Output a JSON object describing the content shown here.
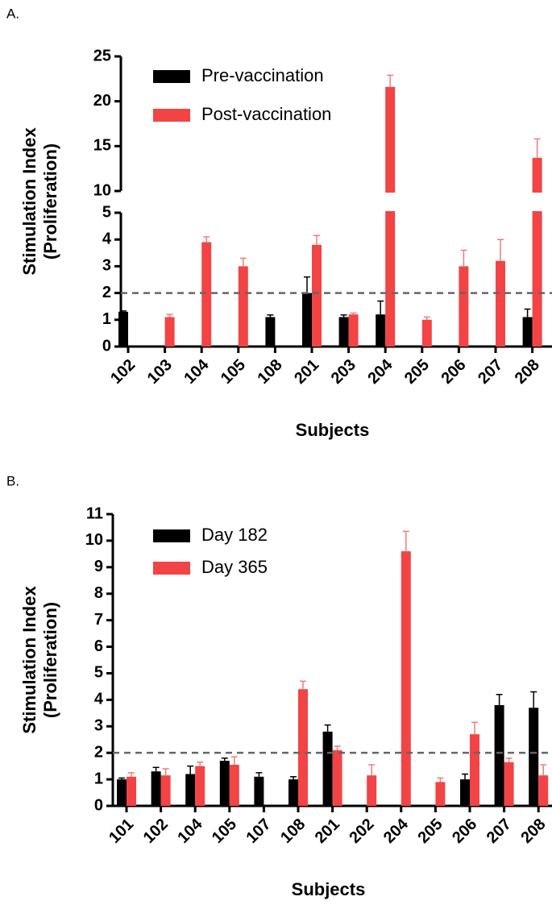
{
  "chart_data": [
    {
      "type": "bar",
      "panel_label": "A.",
      "xlabel": "Subjects",
      "ylabel_lines": [
        "Stimulation Index",
        "(Proliferation)"
      ],
      "categories": [
        "102",
        "103",
        "104",
        "105",
        "108",
        "201",
        "203",
        "204",
        "205",
        "206",
        "207",
        "208"
      ],
      "series": [
        {
          "name": "Pre-vaccination",
          "color": "#000000",
          "error_color": "#000000",
          "values": [
            1.3,
            null,
            null,
            null,
            1.1,
            2.0,
            1.1,
            1.2,
            null,
            null,
            null,
            1.1
          ],
          "errors": [
            0.03,
            null,
            null,
            null,
            0.08,
            0.6,
            0.08,
            0.5,
            null,
            null,
            null,
            0.3
          ]
        },
        {
          "name": "Post-vaccination",
          "color": "#f24445",
          "error_color": "#f47a7a",
          "values": [
            null,
            1.1,
            3.9,
            3.0,
            null,
            3.8,
            1.2,
            21.6,
            1.0,
            3.0,
            3.2,
            13.7
          ],
          "errors": [
            null,
            0.1,
            0.2,
            0.3,
            null,
            0.35,
            0.05,
            1.3,
            0.1,
            0.6,
            0.8,
            2.1
          ]
        }
      ],
      "y_segments": [
        {
          "ylim": [
            0,
            5
          ],
          "yticks": [
            0,
            1,
            2,
            3,
            4,
            5
          ]
        },
        {
          "ylim": [
            10,
            25
          ],
          "yticks": [
            10,
            15,
            20,
            25
          ]
        }
      ],
      "reference_line": 2
    },
    {
      "type": "bar",
      "panel_label": "B.",
      "xlabel": "Subjects",
      "ylabel_lines": [
        "Stimulation Index",
        "(Proliferation)"
      ],
      "categories": [
        "101",
        "102",
        "104",
        "105",
        "107",
        "108",
        "201",
        "202",
        "204",
        "205",
        "206",
        "207",
        "208"
      ],
      "series": [
        {
          "name": "Day 182",
          "color": "#000000",
          "error_color": "#000000",
          "values": [
            1.0,
            1.3,
            1.2,
            1.7,
            1.1,
            1.0,
            2.8,
            null,
            null,
            null,
            1.0,
            3.8,
            3.7
          ],
          "errors": [
            0.05,
            0.15,
            0.3,
            0.1,
            0.15,
            0.1,
            0.25,
            null,
            null,
            null,
            0.2,
            0.4,
            0.6
          ]
        },
        {
          "name": "Day 365",
          "color": "#f24445",
          "error_color": "#f47a7a",
          "values": [
            1.1,
            1.15,
            1.5,
            1.55,
            null,
            4.4,
            2.1,
            1.15,
            9.6,
            0.9,
            2.7,
            1.65,
            1.15
          ],
          "errors": [
            0.15,
            0.25,
            0.15,
            0.3,
            null,
            0.3,
            0.15,
            0.4,
            0.75,
            0.15,
            0.45,
            0.15,
            0.4
          ]
        }
      ],
      "y_segments": [
        {
          "ylim": [
            0,
            11
          ],
          "yticks": [
            0,
            1,
            2,
            3,
            4,
            5,
            6,
            7,
            8,
            9,
            10,
            11
          ]
        }
      ],
      "reference_line": 2
    }
  ]
}
